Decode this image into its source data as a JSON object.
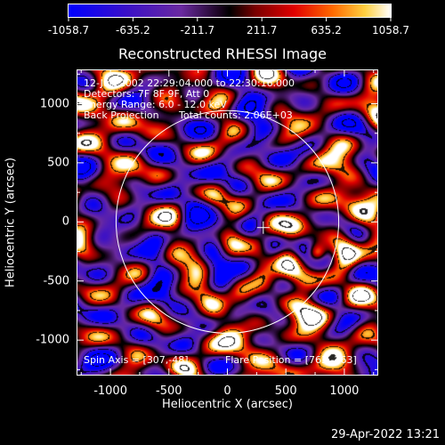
{
  "colorbar": {
    "ticks": [
      "-1058.7",
      "-635.2",
      "-211.7",
      "211.7",
      "635.2",
      "1058.7"
    ],
    "tick_values": [
      -1058.7,
      -635.2,
      -211.7,
      211.7,
      635.2,
      1058.7
    ],
    "range": [
      -1058.7,
      1058.7
    ]
  },
  "title": "Reconstructed RHESSI Image",
  "info": {
    "line1": "12-Jun-2002 22:29:04.000 to 22:30:16.000",
    "line2": "Detectors: 7F 8F 9F, Att 0",
    "line3": "Energy Range: 6.0 - 12.0 keV",
    "line4_left": "Back Projection",
    "line4_right": "Total counts: 2.06E+03"
  },
  "footer_left": "Spin Axis = [307,-48]",
  "footer_right": "Flare Position = [763,-263]",
  "timestamp": "29-Apr-2022 13:21",
  "axes": {
    "xlabel": "Heliocentric X (arcsec)",
    "ylabel": "Heliocentric Y (arcsec)",
    "xticks": [
      "-1000",
      "-500",
      "0",
      "500",
      "1000"
    ],
    "xtick_values": [
      -1000,
      -500,
      0,
      500,
      1000
    ],
    "yticks": [
      "1000",
      "500",
      "0",
      "-500",
      "-1000"
    ],
    "ytick_values": [
      1000,
      500,
      0,
      -500,
      -1000
    ],
    "xlim": [
      -1290,
      1290
    ],
    "ylim": [
      -1300,
      1290
    ]
  },
  "image": {
    "type": "heatmap",
    "solar_limb_radius_arcsec": 952,
    "spin_axis": [
      307,
      -48
    ],
    "flare_position": [
      763,
      -263
    ],
    "colormap": [
      "#0000ff",
      "#2200cc",
      "#5a2ca0",
      "#000000",
      "#8b0000",
      "#ff2000",
      "#ff9000",
      "#ffff80",
      "#ffffff"
    ]
  }
}
